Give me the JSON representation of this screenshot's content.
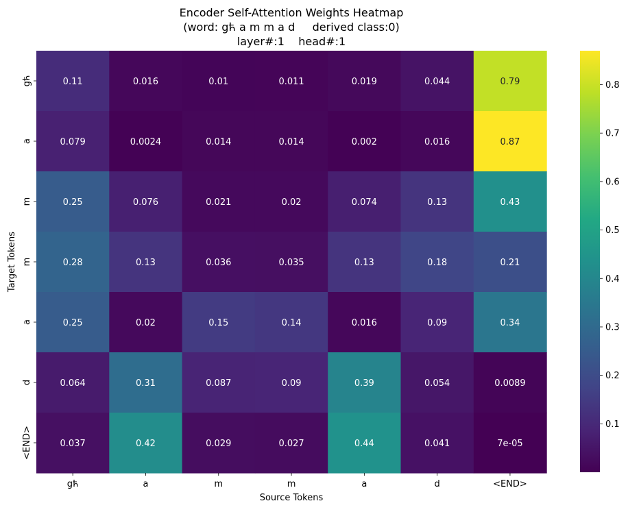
{
  "chart_data": {
    "type": "heatmap",
    "title_lines": [
      "Encoder Self-Attention Weights Heatmap",
      "(word: gћ a m m a d     derived class:0)",
      "layer#:1    head#:1"
    ],
    "xlabel": "Source Tokens",
    "ylabel": "Target Tokens",
    "x_categories": [
      "gћ",
      "a",
      "m",
      "m",
      "a",
      "d",
      "<END>"
    ],
    "y_categories": [
      "gћ",
      "a",
      "m",
      "m",
      "a",
      "d",
      "<END>"
    ],
    "values": [
      [
        0.11,
        0.016,
        0.01,
        0.011,
        0.019,
        0.044,
        0.79
      ],
      [
        0.079,
        0.0024,
        0.014,
        0.014,
        0.002,
        0.016,
        0.87
      ],
      [
        0.25,
        0.076,
        0.021,
        0.02,
        0.074,
        0.13,
        0.43
      ],
      [
        0.28,
        0.13,
        0.036,
        0.035,
        0.13,
        0.18,
        0.21
      ],
      [
        0.25,
        0.02,
        0.15,
        0.14,
        0.016,
        0.09,
        0.34
      ],
      [
        0.064,
        0.31,
        0.087,
        0.09,
        0.39,
        0.054,
        0.0089
      ],
      [
        0.037,
        0.42,
        0.029,
        0.027,
        0.44,
        0.041,
        7e-05
      ]
    ],
    "annotations": [
      [
        "0.11",
        "0.016",
        "0.01",
        "0.011",
        "0.019",
        "0.044",
        "0.79"
      ],
      [
        "0.079",
        "0.0024",
        "0.014",
        "0.014",
        "0.002",
        "0.016",
        "0.87"
      ],
      [
        "0.25",
        "0.076",
        "0.021",
        "0.02",
        "0.074",
        "0.13",
        "0.43"
      ],
      [
        "0.28",
        "0.13",
        "0.036",
        "0.035",
        "0.13",
        "0.18",
        "0.21"
      ],
      [
        "0.25",
        "0.02",
        "0.15",
        "0.14",
        "0.016",
        "0.09",
        "0.34"
      ],
      [
        "0.064",
        "0.31",
        "0.087",
        "0.09",
        "0.39",
        "0.054",
        "0.0089"
      ],
      [
        "0.037",
        "0.42",
        "0.029",
        "0.027",
        "0.44",
        "0.041",
        "7e-05"
      ]
    ],
    "colormap": "viridis",
    "color_range": [
      7e-05,
      0.87
    ],
    "colorbar": {
      "ticks": [
        0.1,
        0.2,
        0.3,
        0.4,
        0.5,
        0.6,
        0.7,
        0.8
      ],
      "tick_labels": [
        "0.1",
        "0.2",
        "0.3",
        "0.4",
        "0.5",
        "0.6",
        "0.7",
        "0.8"
      ],
      "placement": "right"
    },
    "grid": false
  }
}
